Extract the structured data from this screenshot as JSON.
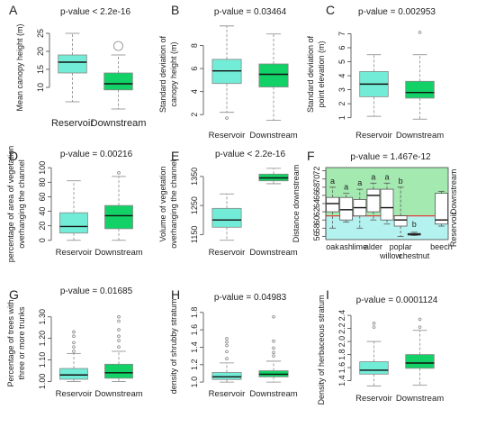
{
  "figure": {
    "colors": {
      "reservoir": "#72ecd6",
      "downstream": "#12d167",
      "upper_zone": "#a3e9b0",
      "lower_zone": "#b4f2f0",
      "threshold": "#e0403a"
    },
    "panels": [
      {
        "letter": "A",
        "title": "p-value < 2.2e-16",
        "ylabel": [
          "Mean canopy height (m)"
        ],
        "ticks": [
          "10",
          "15",
          "20",
          "25"
        ],
        "ylim": [
          3,
          28
        ]
      },
      {
        "letter": "B",
        "title": "p-value = 0.03464",
        "ylabel": [
          "Standard deviation of",
          "canopy height (m)"
        ],
        "ticks": [
          "2",
          "4",
          "6",
          "8"
        ],
        "ylim": [
          1,
          10
        ]
      },
      {
        "letter": "C",
        "title": "p-value = 0.002953",
        "ylabel": [
          "Standard deviation of",
          "point elevation (m)"
        ],
        "ticks": [
          "1",
          "2",
          "3",
          "4",
          "5",
          "6",
          "7"
        ],
        "ylim": [
          0.4,
          7.8
        ]
      },
      {
        "letter": "D",
        "title": "p-value = 0.00216",
        "ylabel": [
          "percentage of area of vegetation",
          "overhanging the channel"
        ],
        "ticks": [
          "0",
          "20",
          "40",
          "60",
          "80",
          "100"
        ],
        "ylim": [
          -4,
          104
        ]
      },
      {
        "letter": "E",
        "title": "p-value < 2.2e-16",
        "ylabel": [
          "Volume of vegetation",
          "overhanging the channel"
        ],
        "ticks": [
          "1150",
          "1250",
          "1350"
        ],
        "ylim": [
          1120,
          1390
        ]
      },
      {
        "letter": "F",
        "title": "p-value = 1.467e-12",
        "ylabel": [
          "Distance downstream"
        ],
        "ticks": [
          "56",
          "58",
          "60",
          "62",
          "64",
          "66",
          "68",
          "70",
          "72"
        ],
        "ylim": [
          55.2,
          72.8
        ]
      },
      {
        "letter": "G",
        "title": "p-value = 0.01685",
        "ylabel": [
          "Percentage of trees with",
          "three or more trunks"
        ],
        "ticks": [
          "1.00",
          "1.10",
          "1.20",
          "1.30"
        ],
        "ylim": [
          0.985,
          1.37
        ]
      },
      {
        "letter": "H",
        "title": "p-value = 0.04983",
        "ylabel": [
          "density of shrubby stratum"
        ],
        "ticks": [
          "1.0",
          "1.2",
          "1.4",
          "1.6",
          "1.8"
        ],
        "ylim": [
          0.97,
          1.85
        ]
      },
      {
        "letter": "I",
        "title": "p-value = 0.0001124",
        "ylabel": [
          "Density of herbaceous stratum"
        ],
        "ticks": [
          "1.4",
          "1.6",
          "1.8",
          "2.0",
          "2.2",
          "2.4"
        ],
        "ylim": [
          1.27,
          2.47
        ]
      }
    ],
    "group_labels": {
      "reservoir": "Reservoir",
      "downstream": "Downstream"
    },
    "panel_f_side_labels": {
      "top": "Downstream",
      "bottom": "Reservoir"
    },
    "panel_f_species": [
      "oak",
      "ash",
      "lime",
      "alder",
      "willow",
      "poplar",
      "chestnut",
      "beech"
    ],
    "panel_f_letters": [
      "a",
      "a",
      "a",
      "a",
      "a",
      "b",
      "b",
      "",
      ""
    ]
  },
  "chart_data": [
    {
      "panel": "A",
      "type": "box",
      "title": "p-value < 2.2e-16",
      "ylabel": "Mean canopy height (m)",
      "categories": [
        "Reservoir",
        "Downstream"
      ],
      "boxes": [
        {
          "whislo": 6,
          "q1": 14,
          "med": 17,
          "q3": 19,
          "whishi": 25,
          "fliers": []
        },
        {
          "whislo": 4,
          "q1": 9.3,
          "med": 11,
          "q3": 14,
          "whishi": 19,
          "fliers": [
            21.5
          ]
        }
      ]
    },
    {
      "panel": "B",
      "type": "box",
      "title": "p-value = 0.03464",
      "ylabel": "Standard deviation of canopy height (m)",
      "categories": [
        "Reservoir",
        "Downstream"
      ],
      "boxes": [
        {
          "whislo": 2.2,
          "q1": 4.7,
          "med": 5.8,
          "q3": 6.8,
          "whishi": 9.7,
          "fliers": [
            1.7
          ]
        },
        {
          "whislo": 1.5,
          "q1": 4.4,
          "med": 5.5,
          "q3": 6.4,
          "whishi": 9.0,
          "fliers": []
        }
      ]
    },
    {
      "panel": "C",
      "type": "box",
      "title": "p-value = 0.002953",
      "ylabel": "Standard deviation of point elevation (m)",
      "categories": [
        "Reservoir",
        "Downstream"
      ],
      "boxes": [
        {
          "whislo": 1.1,
          "q1": 2.5,
          "med": 3.4,
          "q3": 4.3,
          "whishi": 5.5,
          "fliers": []
        },
        {
          "whislo": 0.9,
          "q1": 2.4,
          "med": 2.8,
          "q3": 3.6,
          "whishi": 5.5,
          "fliers": [
            7.1
          ]
        }
      ]
    },
    {
      "panel": "D",
      "type": "box",
      "title": "p-value = 0.00216",
      "ylabel": "percentage of area of vegetation overhanging the channel",
      "categories": [
        "Reservoir",
        "Downstream"
      ],
      "boxes": [
        {
          "whislo": 0,
          "q1": 10,
          "med": 19,
          "q3": 38,
          "whishi": 82,
          "fliers": []
        },
        {
          "whislo": 0,
          "q1": 16,
          "med": 34,
          "q3": 48,
          "whishi": 88,
          "fliers": [
            93
          ]
        }
      ]
    },
    {
      "panel": "E",
      "type": "box",
      "title": "p-value < 2.2e-16",
      "ylabel": "Volume of vegetation overhanging the channel",
      "categories": [
        "Reservoir",
        "Downstream"
      ],
      "boxes": [
        {
          "whislo": 1130,
          "q1": 1175,
          "med": 1200,
          "q3": 1240,
          "whishi": 1290,
          "fliers": []
        },
        {
          "whislo": 1325,
          "q1": 1335,
          "med": 1345,
          "q3": 1358,
          "whishi": 1378,
          "fliers": []
        }
      ]
    },
    {
      "panel": "F",
      "type": "box",
      "title": "p-value = 1.467e-12",
      "ylabel": "Distance downstream",
      "ylim": [
        55.2,
        72.8
      ],
      "threshold": 61,
      "categories": [
        "oak",
        "ash",
        "lime",
        "alder",
        "",
        "willow",
        "poplar",
        "chestnut",
        "beech"
      ],
      "boxes": [
        {
          "whislo": 58,
          "q1": 62,
          "med": 64,
          "q3": 65.5,
          "whishi": 68,
          "fliers": []
        },
        {
          "whislo": 59.5,
          "q1": 60,
          "med": 62.5,
          "q3": 65.5,
          "whishi": 66.5,
          "fliers": []
        },
        {
          "whislo": 58,
          "q1": 61,
          "med": 63,
          "q3": 65,
          "whishi": 67.5,
          "fliers": []
        },
        {
          "whislo": 60,
          "q1": 62,
          "med": 66,
          "q3": 67.5,
          "whishi": 69,
          "fliers": []
        },
        {
          "whislo": 59,
          "q1": 60,
          "med": 63,
          "q3": 67.5,
          "whishi": 69,
          "fliers": []
        },
        {
          "whislo": 56,
          "q1": 58.5,
          "med": 60,
          "q3": 61,
          "whishi": 68,
          "fliers": []
        },
        {
          "whislo": 56.2,
          "q1": 56.3,
          "med": 56.5,
          "q3": 56.7,
          "whishi": 57,
          "fliers": []
        },
        {
          "whislo": null,
          "q1": null,
          "med": null,
          "q3": null,
          "whishi": null,
          "fliers": []
        },
        {
          "whislo": 58.5,
          "q1": 59,
          "med": 60,
          "q3": 66.5,
          "whishi": 67,
          "fliers": []
        }
      ]
    },
    {
      "panel": "G",
      "type": "box",
      "title": "p-value = 0.01685",
      "ylabel": "Percentage of trees with three or more trunks",
      "categories": [
        "Reservoir",
        "Downstream"
      ],
      "boxes": [
        {
          "whislo": 1.0,
          "q1": 1.01,
          "med": 1.03,
          "q3": 1.06,
          "whishi": 1.13,
          "fliers": [
            1.14,
            1.16,
            1.18,
            1.21,
            1.23
          ]
        },
        {
          "whislo": 1.0,
          "q1": 1.015,
          "med": 1.04,
          "q3": 1.08,
          "whishi": 1.14,
          "fliers": [
            1.16,
            1.19,
            1.21,
            1.24,
            1.28,
            1.3
          ]
        }
      ]
    },
    {
      "panel": "H",
      "type": "box",
      "title": "p-value = 0.04983",
      "ylabel": "density of shrubby stratum",
      "categories": [
        "Reservoir",
        "Downstream"
      ],
      "boxes": [
        {
          "whislo": 1.0,
          "q1": 1.03,
          "med": 1.06,
          "q3": 1.11,
          "whishi": 1.22,
          "fliers": [
            1.27,
            1.35,
            1.42,
            1.46,
            1.5
          ]
        },
        {
          "whislo": 1.0,
          "q1": 1.06,
          "med": 1.09,
          "q3": 1.13,
          "whishi": 1.24,
          "fliers": [
            1.3,
            1.34,
            1.39,
            1.47,
            1.75
          ]
        }
      ]
    },
    {
      "panel": "I",
      "type": "box",
      "title": "p-value = 0.0001124",
      "ylabel": "Density of herbaceous stratum",
      "categories": [
        "Reservoir",
        "Downstream"
      ],
      "boxes": [
        {
          "whislo": 1.32,
          "q1": 1.5,
          "med": 1.56,
          "q3": 1.69,
          "whishi": 2.0,
          "fliers": [
            2.22,
            2.28
          ]
        },
        {
          "whislo": 1.33,
          "q1": 1.59,
          "med": 1.67,
          "q3": 1.8,
          "whishi": 2.17,
          "fliers": [
            2.22,
            2.34
          ]
        }
      ]
    }
  ]
}
